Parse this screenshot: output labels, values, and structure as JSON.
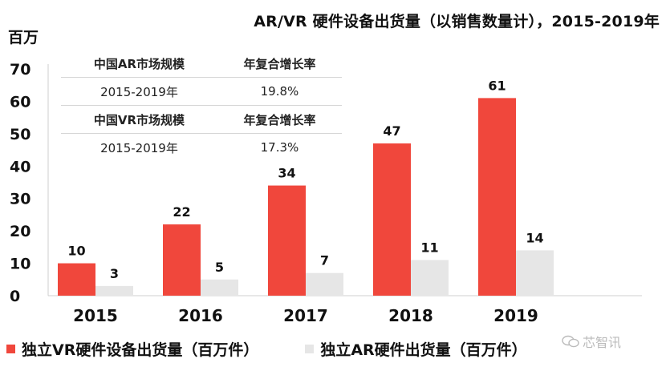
{
  "unit_label": "百万",
  "watermark": "芯智讯",
  "colors": {
    "vr": "#f0473c",
    "ar": "#e6e6e6",
    "axis": "#cfcfcf"
  },
  "cagr_table": {
    "rows": [
      [
        "中国AR市场规模",
        "年复合增长率"
      ],
      [
        "2015-2019年",
        "19.8%"
      ],
      [
        "中国VR市场规模",
        "年复合增长率"
      ],
      [
        "2015-2019年",
        "17.3%"
      ]
    ]
  },
  "chart_data": {
    "type": "bar",
    "title": "AR/VR 硬件设备出货量（以销售数量计），2015-2019年",
    "ylabel": "百万",
    "ylim": [
      0,
      70
    ],
    "yticks": [
      0,
      10,
      20,
      30,
      40,
      50,
      60,
      70
    ],
    "categories": [
      "2015",
      "2016",
      "2017",
      "2018",
      "2019"
    ],
    "series": [
      {
        "name": "独立VR硬件设备出货量（百万件）",
        "values": [
          10,
          22,
          34,
          47,
          61
        ]
      },
      {
        "name": "独立AR硬件出货量（百万件）",
        "values": [
          3,
          5,
          7,
          11,
          14
        ]
      }
    ],
    "legend_position": "bottom"
  }
}
